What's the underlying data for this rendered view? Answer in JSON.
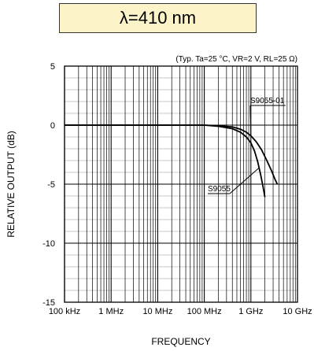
{
  "chart_data": {
    "type": "line",
    "title": "λ=410 nm",
    "condition": "(Typ. Ta=25 °C, VR=2 V, RL=25 Ω)",
    "xlabel": "FREQUENCY",
    "ylabel": "RELATIVE OUTPUT (dB)",
    "xscale": "log",
    "xlim_hz": [
      100000,
      10000000000
    ],
    "ylim": [
      -15,
      5
    ],
    "x_ticks": [
      {
        "value": 100000,
        "label": "100 kHz"
      },
      {
        "value": 1000000,
        "label": "1 MHz"
      },
      {
        "value": 10000000,
        "label": "10 MHz"
      },
      {
        "value": 100000000,
        "label": "100 MHz"
      },
      {
        "value": 1000000000,
        "label": "1 GHz"
      },
      {
        "value": 10000000000,
        "label": "10 GHz"
      }
    ],
    "y_ticks": [
      {
        "value": 5,
        "label": "5"
      },
      {
        "value": 0,
        "label": "0"
      },
      {
        "value": -5,
        "label": "-5"
      },
      {
        "value": -10,
        "label": "-10"
      },
      {
        "value": -15,
        "label": "-15"
      }
    ],
    "grid": true,
    "series": [
      {
        "name": "S9055-01",
        "color": "#000000",
        "x_hz": [
          100000,
          1000000,
          10000000,
          100000000,
          200000000,
          400000000,
          600000000,
          800000000,
          1000000000,
          1300000000,
          1700000000,
          2200000000,
          2800000000,
          3300000000,
          3700000000
        ],
        "y_db": [
          0,
          0,
          0,
          0,
          -0.05,
          -0.15,
          -0.35,
          -0.6,
          -0.9,
          -1.4,
          -2.1,
          -3.0,
          -3.9,
          -4.6,
          -5.0
        ]
      },
      {
        "name": "S9055",
        "color": "#000000",
        "x_hz": [
          100000,
          1000000,
          10000000,
          100000000,
          200000000,
          400000000,
          600000000,
          800000000,
          1000000000,
          1200000000,
          1400000000,
          1600000000,
          1800000000,
          2000000000
        ],
        "y_db": [
          0,
          0,
          0,
          0,
          -0.1,
          -0.3,
          -0.6,
          -1.0,
          -1.5,
          -2.2,
          -3.1,
          -4.1,
          -5.1,
          -6.1
        ]
      }
    ],
    "annotations": [
      {
        "text": "S9055-01",
        "series": "S9055-01"
      },
      {
        "text": "S9055",
        "series": "S9055"
      }
    ]
  }
}
